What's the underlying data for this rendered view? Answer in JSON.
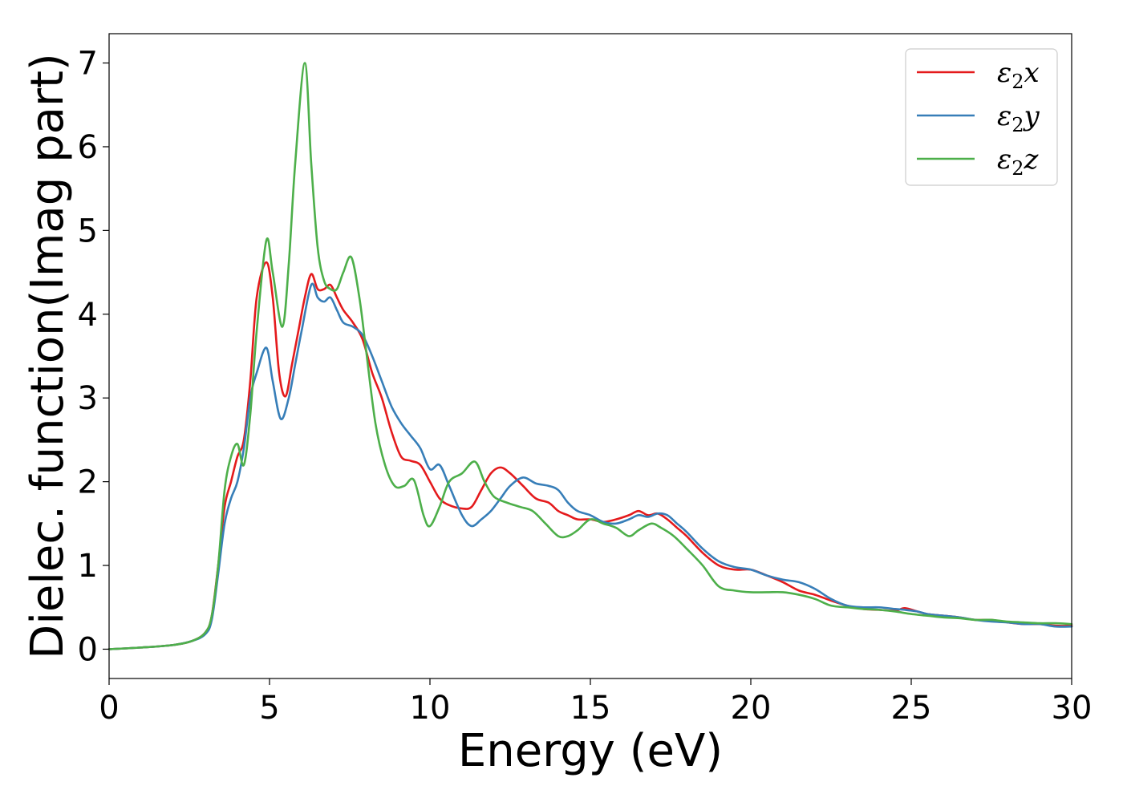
{
  "chart_data": {
    "type": "line",
    "title": "",
    "xlabel": "Energy (eV)",
    "ylabel": "Dielec. function(Imag part)",
    "xlim": [
      0,
      30
    ],
    "ylim": [
      -0.35,
      7.35
    ],
    "xticks": [
      0,
      5,
      10,
      15,
      20,
      25,
      30
    ],
    "yticks": [
      0,
      1,
      2,
      3,
      4,
      5,
      6,
      7
    ],
    "grid": false,
    "legend_position": "top-right",
    "series": [
      {
        "name": "ε₂x",
        "legend_base": "ε",
        "legend_sub": "2",
        "legend_suffix": "x",
        "color": "#e41a1c",
        "x": [
          0,
          1,
          2,
          2.6,
          3.0,
          3.2,
          3.4,
          3.6,
          3.8,
          4.0,
          4.2,
          4.4,
          4.6,
          4.9,
          5.1,
          5.3,
          5.5,
          5.7,
          5.9,
          6.1,
          6.3,
          6.5,
          6.7,
          6.9,
          7.1,
          7.3,
          7.6,
          7.9,
          8.2,
          8.5,
          8.8,
          9.1,
          9.4,
          9.7,
          10.0,
          10.3,
          10.6,
          11.0,
          11.3,
          11.6,
          11.9,
          12.2,
          12.5,
          12.9,
          13.3,
          13.7,
          14.0,
          14.3,
          14.6,
          15.0,
          15.4,
          15.8,
          16.2,
          16.5,
          16.8,
          17.1,
          17.4,
          17.7,
          18.0,
          18.5,
          19.0,
          19.5,
          20.0,
          20.5,
          21.0,
          21.5,
          22.0,
          22.5,
          23.0,
          23.5,
          24.0,
          24.5,
          24.8,
          25.2,
          25.5,
          26,
          26.5,
          27,
          27.5,
          28,
          28.5,
          29,
          29.5,
          30
        ],
        "y": [
          0.0,
          0.02,
          0.05,
          0.1,
          0.2,
          0.4,
          1.0,
          1.7,
          2.0,
          2.3,
          2.5,
          3.2,
          4.2,
          4.62,
          4.2,
          3.3,
          3.02,
          3.4,
          3.8,
          4.2,
          4.48,
          4.3,
          4.3,
          4.35,
          4.2,
          4.05,
          3.9,
          3.7,
          3.3,
          3.0,
          2.6,
          2.3,
          2.25,
          2.2,
          2.0,
          1.8,
          1.72,
          1.68,
          1.7,
          1.9,
          2.1,
          2.17,
          2.1,
          1.95,
          1.8,
          1.75,
          1.65,
          1.6,
          1.55,
          1.55,
          1.52,
          1.55,
          1.6,
          1.65,
          1.6,
          1.62,
          1.55,
          1.45,
          1.35,
          1.15,
          1.0,
          0.95,
          0.95,
          0.88,
          0.8,
          0.7,
          0.65,
          0.58,
          0.52,
          0.48,
          0.47,
          0.46,
          0.49,
          0.45,
          0.42,
          0.4,
          0.38,
          0.35,
          0.35,
          0.32,
          0.3,
          0.3,
          0.28,
          0.28
        ]
      },
      {
        "name": "ε₂y",
        "legend_base": "ε",
        "legend_sub": "2",
        "legend_suffix": "y",
        "color": "#377eb8",
        "x": [
          0,
          1,
          2,
          2.6,
          3.0,
          3.2,
          3.4,
          3.6,
          3.8,
          4.0,
          4.2,
          4.4,
          4.6,
          4.9,
          5.1,
          5.35,
          5.6,
          5.8,
          6.0,
          6.3,
          6.5,
          6.7,
          6.9,
          7.1,
          7.3,
          7.6,
          7.9,
          8.2,
          8.5,
          8.8,
          9.1,
          9.4,
          9.7,
          10.0,
          10.3,
          10.6,
          11.0,
          11.3,
          11.6,
          11.9,
          12.2,
          12.5,
          12.9,
          13.3,
          13.7,
          14.0,
          14.3,
          14.6,
          15.0,
          15.4,
          15.8,
          16.2,
          16.5,
          16.8,
          17.1,
          17.4,
          17.7,
          18.0,
          18.5,
          19.0,
          19.5,
          20.0,
          20.5,
          21.0,
          21.5,
          22.0,
          22.5,
          23.0,
          23.5,
          24.0,
          24.5,
          24.8,
          25.2,
          25.5,
          26,
          26.5,
          27,
          27.5,
          28,
          28.5,
          29,
          29.5,
          30
        ],
        "y": [
          0.0,
          0.02,
          0.05,
          0.1,
          0.18,
          0.35,
          0.9,
          1.5,
          1.8,
          2.0,
          2.4,
          3.0,
          3.3,
          3.6,
          3.2,
          2.75,
          3.0,
          3.4,
          3.8,
          4.35,
          4.2,
          4.15,
          4.2,
          4.05,
          3.9,
          3.85,
          3.75,
          3.5,
          3.2,
          2.9,
          2.7,
          2.55,
          2.4,
          2.15,
          2.2,
          1.95,
          1.6,
          1.47,
          1.55,
          1.65,
          1.8,
          1.95,
          2.05,
          1.98,
          1.95,
          1.9,
          1.75,
          1.65,
          1.6,
          1.52,
          1.5,
          1.55,
          1.6,
          1.58,
          1.62,
          1.6,
          1.5,
          1.4,
          1.2,
          1.05,
          0.98,
          0.95,
          0.88,
          0.83,
          0.8,
          0.72,
          0.6,
          0.52,
          0.5,
          0.5,
          0.48,
          0.47,
          0.45,
          0.42,
          0.4,
          0.38,
          0.35,
          0.33,
          0.32,
          0.3,
          0.3,
          0.27,
          0.27
        ]
      },
      {
        "name": "ε₂z",
        "legend_base": "ε",
        "legend_sub": "2",
        "legend_suffix": "z",
        "color": "#4daf4a",
        "x": [
          0,
          1,
          2,
          2.6,
          3.0,
          3.2,
          3.4,
          3.6,
          3.8,
          4.0,
          4.2,
          4.4,
          4.6,
          4.9,
          5.1,
          5.4,
          5.6,
          5.8,
          6.1,
          6.3,
          6.5,
          6.7,
          6.9,
          7.1,
          7.3,
          7.55,
          7.8,
          8.0,
          8.3,
          8.6,
          8.9,
          9.2,
          9.5,
          9.8,
          10.0,
          10.3,
          10.6,
          11.0,
          11.4,
          11.7,
          12.0,
          12.4,
          12.8,
          13.2,
          13.6,
          14.0,
          14.3,
          14.6,
          15.0,
          15.4,
          15.8,
          16.2,
          16.5,
          16.9,
          17.2,
          17.6,
          18.0,
          18.5,
          19.0,
          19.5,
          20.0,
          20.5,
          21.0,
          21.5,
          22.0,
          22.5,
          23.0,
          23.5,
          24.0,
          24.5,
          25.0,
          25.5,
          26,
          26.5,
          27,
          27.5,
          28,
          28.5,
          29,
          29.5,
          30
        ],
        "y": [
          0.0,
          0.02,
          0.05,
          0.1,
          0.2,
          0.4,
          1.0,
          1.9,
          2.3,
          2.45,
          2.2,
          2.8,
          3.8,
          4.88,
          4.5,
          3.85,
          4.6,
          5.8,
          7.0,
          5.8,
          4.8,
          4.4,
          4.3,
          4.3,
          4.5,
          4.68,
          4.2,
          3.6,
          2.7,
          2.2,
          1.95,
          1.95,
          2.02,
          1.6,
          1.47,
          1.7,
          2.0,
          2.1,
          2.24,
          2.0,
          1.82,
          1.75,
          1.7,
          1.65,
          1.5,
          1.35,
          1.35,
          1.42,
          1.55,
          1.5,
          1.45,
          1.35,
          1.42,
          1.5,
          1.45,
          1.35,
          1.2,
          1.0,
          0.75,
          0.7,
          0.68,
          0.68,
          0.68,
          0.65,
          0.6,
          0.52,
          0.5,
          0.48,
          0.47,
          0.45,
          0.42,
          0.4,
          0.38,
          0.37,
          0.35,
          0.35,
          0.33,
          0.32,
          0.31,
          0.31,
          0.3
        ]
      }
    ]
  }
}
